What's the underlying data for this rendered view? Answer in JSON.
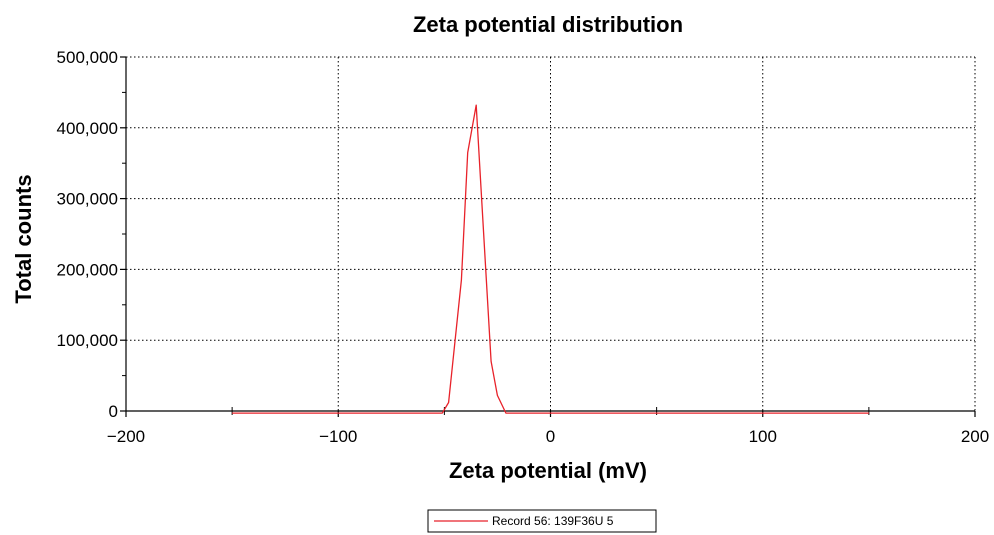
{
  "chart_data": {
    "type": "line",
    "title": "Zeta potential distribution",
    "xlabel": "Zeta potential (mV)",
    "ylabel": "Total counts",
    "xlim": [
      -200,
      200
    ],
    "ylim": [
      0,
      500000
    ],
    "x_ticks": [
      -200,
      -100,
      0,
      100,
      200
    ],
    "x_tick_labels": [
      "−200",
      "−100",
      "0",
      "100",
      "200"
    ],
    "x_minor_ticks": [
      -150,
      -50,
      50,
      150
    ],
    "y_ticks": [
      0,
      100000,
      200000,
      300000,
      400000,
      500000
    ],
    "y_tick_labels": [
      "0",
      "100,000",
      "200,000",
      "300,000",
      "400,000",
      "500,000"
    ],
    "y_minor_ticks": [
      50000,
      150000,
      250000,
      350000,
      450000
    ],
    "grid": true,
    "legend_position": "bottom-center",
    "series": [
      {
        "name": "Record 56: 139F36U 5",
        "color": "#e8222a",
        "x": [
          -150,
          -100,
          -60,
          -51,
          -48,
          -42,
          -39,
          -35,
          -31,
          -28,
          -25,
          -21,
          0,
          50,
          100,
          150
        ],
        "y": [
          -3000,
          -3000,
          -3000,
          -3000,
          12000,
          185000,
          365000,
          432000,
          225000,
          70000,
          22000,
          -3000,
          -3000,
          -3000,
          -3000,
          -3000
        ]
      }
    ]
  }
}
